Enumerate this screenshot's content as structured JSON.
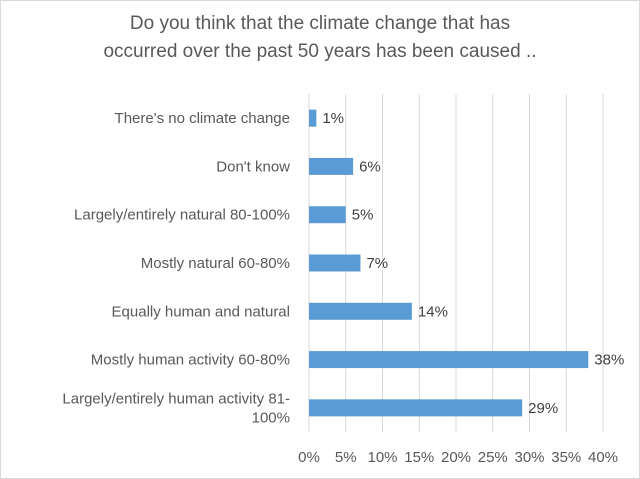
{
  "chart_data": {
    "type": "bar",
    "orientation": "horizontal",
    "title_lines": [
      "Do you think that the climate change that has",
      "occurred over the past 50 years has been caused .."
    ],
    "categories": [
      [
        "There's no climate change"
      ],
      [
        "Don't know"
      ],
      [
        "Largely/entirely natural 80-100%"
      ],
      [
        "Mostly natural 60-80%"
      ],
      [
        "Equally human and natural"
      ],
      [
        "Mostly human activity 60-80%"
      ],
      [
        "Largely/entirely human activity 81-",
        "100%"
      ]
    ],
    "values": [
      1,
      6,
      5,
      7,
      14,
      38,
      29
    ],
    "data_labels": [
      "1%",
      "6%",
      "5%",
      "7%",
      "14%",
      "38%",
      "29%"
    ],
    "x_ticks": [
      "0%",
      "5%",
      "10%",
      "15%",
      "20%",
      "25%",
      "30%",
      "35%",
      "40%"
    ],
    "xlim": [
      0,
      40
    ],
    "grid": true,
    "legend": "none",
    "colors": {
      "bar": "#5b9bd5",
      "grid": "#d9d9d9",
      "text": "#595959",
      "label": "#404040"
    }
  }
}
